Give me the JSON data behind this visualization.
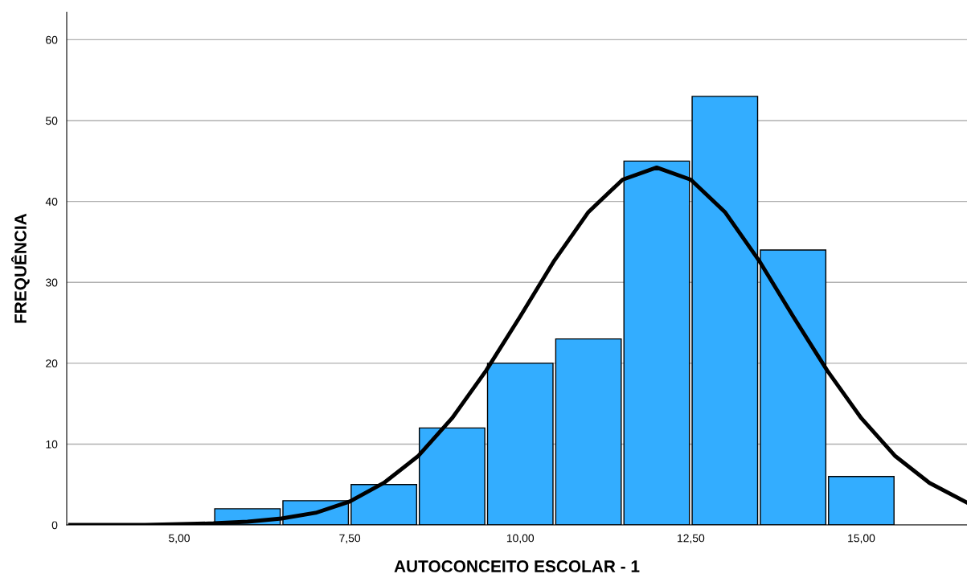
{
  "chart_data": {
    "type": "histogram",
    "xlabel": "AUTOCONCEITO ESCOLAR - 1",
    "ylabel": "FREQUÊNCIA",
    "bins": [
      5.5,
      6.5,
      7.5,
      8.5,
      9.5,
      10.5,
      11.5,
      12.5,
      13.5,
      14.5,
      15.5
    ],
    "values": [
      2,
      3,
      5,
      12,
      20,
      23,
      45,
      53,
      34,
      6
    ],
    "color": "#33adff",
    "series": [
      {
        "type": "line",
        "color": "#000000",
        "x": [
          3.4,
          4.5,
          5.5,
          6,
          6.5,
          7,
          7.5,
          8,
          8.5,
          9,
          9.5,
          10,
          10.5,
          11,
          11.5,
          12,
          12.5,
          13,
          13.5,
          14,
          14.5,
          15,
          15.5,
          16,
          16.54
        ],
        "values": [
          0,
          0,
          0.2,
          0.4,
          0.8,
          1.5,
          2.9,
          5.2,
          8.5,
          13.2,
          19.1,
          25.8,
          32.7,
          38.7,
          42.7,
          44.2,
          42.7,
          38.7,
          32.7,
          25.8,
          19.1,
          13.2,
          8.5,
          5.2,
          2.8
        ]
      }
    ],
    "xlim": [
      3.35,
      16.55
    ],
    "xticks": [
      {
        "value": 5,
        "label": "5,00"
      },
      {
        "value": 7.5,
        "label": "7,50"
      },
      {
        "value": 10,
        "label": "10,00"
      },
      {
        "value": 12.5,
        "label": "12,50"
      },
      {
        "value": 15,
        "label": "15,00"
      }
    ],
    "ylim": [
      0,
      63.4
    ],
    "yticks": [
      0,
      10,
      20,
      30,
      40,
      50,
      60
    ],
    "grid": "y"
  }
}
